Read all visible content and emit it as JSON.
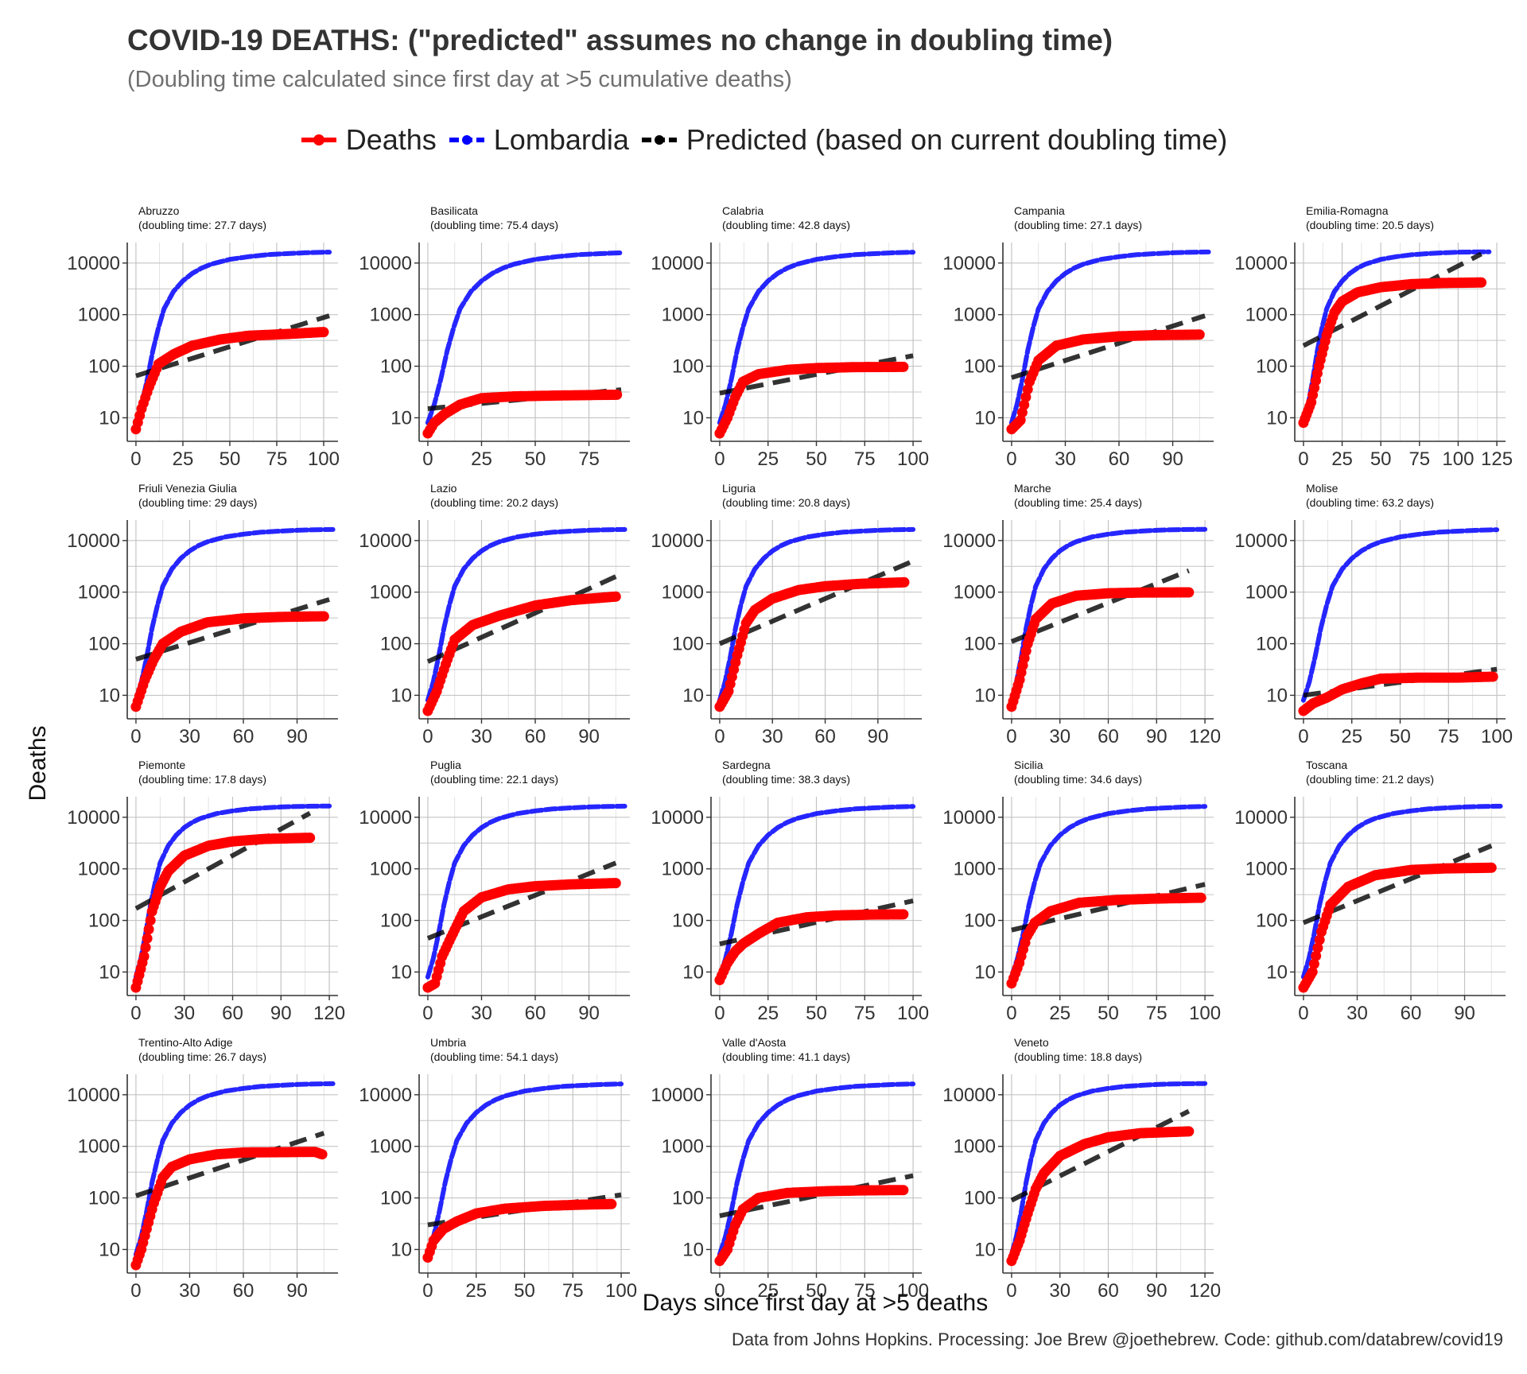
{
  "title": "COVID-19 DEATHS: (\"predicted\" assumes no change in doubling time)",
  "subtitle": "(Doubling time calculated since first day at >5 cumulative deaths)",
  "legend": [
    {
      "label": "Deaths",
      "color": "#ff0000",
      "style": "solid"
    },
    {
      "label": "Lombardia",
      "color": "#0000ff",
      "style": "dashed"
    },
    {
      "label": "Predicted (based on current doubling time)",
      "color": "#000000",
      "style": "dashed"
    }
  ],
  "axes": {
    "xlabel": "Days since first day at >5 deaths",
    "ylabel": "Deaths"
  },
  "caption": "Data from Johns Hopkins. Processing: Joe Brew @joethebrew. Code: github.com/databrew/covid19",
  "chart_data": {
    "type": "line",
    "y_scale": "log10",
    "y_ticks": [
      10,
      100,
      1000,
      10000
    ],
    "ylim": [
      3.5,
      25000
    ],
    "grid": true,
    "legend_position": "top",
    "lombardia_curve": [
      [
        0,
        8
      ],
      [
        3,
        18
      ],
      [
        6,
        55
      ],
      [
        9,
        200
      ],
      [
        12,
        560
      ],
      [
        15,
        1300
      ],
      [
        20,
        2800
      ],
      [
        25,
        4500
      ],
      [
        30,
        6300
      ],
      [
        35,
        8000
      ],
      [
        40,
        9500
      ],
      [
        45,
        10600
      ],
      [
        50,
        11800
      ],
      [
        60,
        13300
      ],
      [
        70,
        14500
      ],
      [
        80,
        15200
      ],
      [
        90,
        15800
      ],
      [
        100,
        16200
      ],
      [
        110,
        16400
      ],
      [
        120,
        16500
      ]
    ],
    "panels": [
      {
        "region": "Abruzzo",
        "doubling_label": "(doubling time: 27.7 days)",
        "x_ticks": [
          0,
          25,
          50,
          75,
          100
        ],
        "xmax": 103,
        "deaths_points": [
          [
            0,
            6
          ],
          [
            3,
            15
          ],
          [
            7,
            40
          ],
          [
            12,
            110
          ],
          [
            20,
            170
          ],
          [
            30,
            250
          ],
          [
            45,
            330
          ],
          [
            60,
            390
          ],
          [
            80,
            420
          ],
          [
            100,
            460
          ]
        ],
        "predicted": [
          [
            0,
            65
          ],
          [
            103,
            950
          ]
        ]
      },
      {
        "region": "Basilicata",
        "doubling_label": "(doubling time: 75.4 days)",
        "x_ticks": [
          0,
          25,
          50,
          75
        ],
        "xmax": 90,
        "deaths_points": [
          [
            0,
            5
          ],
          [
            3,
            8
          ],
          [
            8,
            12
          ],
          [
            15,
            18
          ],
          [
            25,
            24
          ],
          [
            40,
            26
          ],
          [
            60,
            27
          ],
          [
            88,
            28
          ]
        ],
        "predicted": [
          [
            0,
            15
          ],
          [
            90,
            35
          ]
        ]
      },
      {
        "region": "Calabria",
        "doubling_label": "(doubling time: 42.8 days)",
        "x_ticks": [
          0,
          25,
          50,
          75,
          100
        ],
        "xmax": 100,
        "deaths_points": [
          [
            0,
            5
          ],
          [
            4,
            10
          ],
          [
            8,
            25
          ],
          [
            12,
            50
          ],
          [
            20,
            70
          ],
          [
            35,
            85
          ],
          [
            50,
            92
          ],
          [
            70,
            96
          ],
          [
            95,
            97
          ]
        ],
        "predicted": [
          [
            0,
            30
          ],
          [
            100,
            160
          ]
        ]
      },
      {
        "region": "Campania",
        "doubling_label": "(doubling time: 27.1 days)",
        "x_ticks": [
          0,
          30,
          60,
          90
        ],
        "xmax": 108,
        "deaths_points": [
          [
            0,
            6
          ],
          [
            5,
            9
          ],
          [
            10,
            50
          ],
          [
            15,
            130
          ],
          [
            25,
            250
          ],
          [
            40,
            330
          ],
          [
            60,
            380
          ],
          [
            80,
            400
          ],
          [
            105,
            410
          ]
        ],
        "predicted": [
          [
            0,
            60
          ],
          [
            108,
            950
          ]
        ]
      },
      {
        "region": "Emilia-Romagna",
        "doubling_label": "(doubling time: 20.5 days)",
        "x_ticks": [
          0,
          25,
          50,
          75,
          100,
          125
        ],
        "xmax": 125,
        "deaths_points": [
          [
            0,
            8
          ],
          [
            5,
            20
          ],
          [
            10,
            100
          ],
          [
            15,
            400
          ],
          [
            20,
            1100
          ],
          [
            25,
            1800
          ],
          [
            35,
            2700
          ],
          [
            50,
            3400
          ],
          [
            70,
            3900
          ],
          [
            90,
            4100
          ],
          [
            115,
            4200
          ]
        ],
        "predicted": [
          [
            0,
            250
          ],
          [
            115,
            15000
          ]
        ]
      },
      {
        "region": "Friuli Venezia Giulia",
        "doubling_label": "(doubling time: 29 days)",
        "x_ticks": [
          0,
          30,
          60,
          90
        ],
        "xmax": 108,
        "deaths_points": [
          [
            0,
            6
          ],
          [
            5,
            20
          ],
          [
            10,
            50
          ],
          [
            15,
            100
          ],
          [
            25,
            170
          ],
          [
            40,
            260
          ],
          [
            60,
            310
          ],
          [
            80,
            330
          ],
          [
            105,
            340
          ]
        ],
        "predicted": [
          [
            0,
            50
          ],
          [
            108,
            720
          ]
        ]
      },
      {
        "region": "Lazio",
        "doubling_label": "(doubling time: 20.2 days)",
        "x_ticks": [
          0,
          30,
          60,
          90
        ],
        "xmax": 108,
        "deaths_points": [
          [
            0,
            5
          ],
          [
            5,
            12
          ],
          [
            10,
            40
          ],
          [
            15,
            120
          ],
          [
            25,
            230
          ],
          [
            40,
            350
          ],
          [
            60,
            550
          ],
          [
            80,
            700
          ],
          [
            105,
            820
          ]
        ],
        "predicted": [
          [
            0,
            45
          ],
          [
            105,
            2000
          ]
        ]
      },
      {
        "region": "Liguria",
        "doubling_label": "(doubling time: 20.8 days)",
        "x_ticks": [
          0,
          30,
          60,
          90
        ],
        "xmax": 110,
        "deaths_points": [
          [
            0,
            6
          ],
          [
            5,
            12
          ],
          [
            10,
            60
          ],
          [
            15,
            250
          ],
          [
            20,
            450
          ],
          [
            30,
            750
          ],
          [
            45,
            1100
          ],
          [
            60,
            1300
          ],
          [
            80,
            1450
          ],
          [
            105,
            1550
          ]
        ],
        "predicted": [
          [
            0,
            100
          ],
          [
            110,
            4000
          ]
        ]
      },
      {
        "region": "Marche",
        "doubling_label": "(doubling time: 25.4 days)",
        "x_ticks": [
          0,
          30,
          60,
          90,
          120
        ],
        "xmax": 120,
        "deaths_points": [
          [
            0,
            6
          ],
          [
            5,
            20
          ],
          [
            10,
            100
          ],
          [
            15,
            300
          ],
          [
            25,
            600
          ],
          [
            40,
            850
          ],
          [
            60,
            950
          ],
          [
            80,
            980
          ],
          [
            110,
            990
          ]
        ],
        "predicted": [
          [
            0,
            110
          ],
          [
            110,
            2600
          ]
        ]
      },
      {
        "region": "Molise",
        "doubling_label": "(doubling time: 63.2 days)",
        "x_ticks": [
          0,
          25,
          50,
          75,
          100
        ],
        "xmax": 100,
        "deaths_points": [
          [
            0,
            5
          ],
          [
            5,
            7
          ],
          [
            12,
            9
          ],
          [
            20,
            13
          ],
          [
            30,
            17
          ],
          [
            40,
            21
          ],
          [
            60,
            22
          ],
          [
            80,
            22
          ],
          [
            98,
            23
          ]
        ],
        "predicted": [
          [
            0,
            10
          ],
          [
            100,
            32
          ]
        ]
      },
      {
        "region": "Piemonte",
        "doubling_label": "(doubling time: 17.8 days)",
        "x_ticks": [
          0,
          30,
          60,
          90,
          120
        ],
        "xmax": 120,
        "deaths_points": [
          [
            0,
            5
          ],
          [
            5,
            20
          ],
          [
            10,
            150
          ],
          [
            15,
            450
          ],
          [
            20,
            900
          ],
          [
            30,
            1800
          ],
          [
            45,
            2800
          ],
          [
            60,
            3400
          ],
          [
            80,
            3800
          ],
          [
            108,
            4000
          ]
        ],
        "predicted": [
          [
            0,
            170
          ],
          [
            108,
            12000
          ]
        ]
      },
      {
        "region": "Puglia",
        "doubling_label": "(doubling time: 22.1 days)",
        "x_ticks": [
          0,
          30,
          60,
          90
        ],
        "xmax": 108,
        "deaths_points": [
          [
            0,
            5
          ],
          [
            4,
            6
          ],
          [
            8,
            20
          ],
          [
            12,
            40
          ],
          [
            20,
            150
          ],
          [
            30,
            280
          ],
          [
            45,
            400
          ],
          [
            60,
            460
          ],
          [
            80,
            500
          ],
          [
            105,
            530
          ]
        ],
        "predicted": [
          [
            0,
            45
          ],
          [
            105,
            1300
          ]
        ]
      },
      {
        "region": "Sardegna",
        "doubling_label": "(doubling time: 38.3 days)",
        "x_ticks": [
          0,
          25,
          50,
          75,
          100
        ],
        "xmax": 100,
        "deaths_points": [
          [
            0,
            7
          ],
          [
            4,
            15
          ],
          [
            8,
            25
          ],
          [
            12,
            35
          ],
          [
            20,
            55
          ],
          [
            30,
            90
          ],
          [
            45,
            115
          ],
          [
            60,
            125
          ],
          [
            80,
            130
          ],
          [
            95,
            131
          ]
        ],
        "predicted": [
          [
            0,
            35
          ],
          [
            100,
            240
          ]
        ]
      },
      {
        "region": "Sicilia",
        "doubling_label": "(doubling time: 34.6 days)",
        "x_ticks": [
          0,
          25,
          50,
          75,
          100
        ],
        "xmax": 100,
        "deaths_points": [
          [
            0,
            6
          ],
          [
            4,
            15
          ],
          [
            8,
            50
          ],
          [
            12,
            90
          ],
          [
            20,
            150
          ],
          [
            35,
            220
          ],
          [
            55,
            250
          ],
          [
            75,
            265
          ],
          [
            98,
            275
          ]
        ],
        "predicted": [
          [
            0,
            65
          ],
          [
            100,
            500
          ]
        ]
      },
      {
        "region": "Toscana",
        "doubling_label": "(doubling time: 21.2 days)",
        "x_ticks": [
          0,
          30,
          60,
          90
        ],
        "xmax": 108,
        "deaths_points": [
          [
            0,
            5
          ],
          [
            5,
            10
          ],
          [
            10,
            60
          ],
          [
            15,
            200
          ],
          [
            25,
            450
          ],
          [
            40,
            750
          ],
          [
            60,
            950
          ],
          [
            80,
            1020
          ],
          [
            105,
            1050
          ]
        ],
        "predicted": [
          [
            0,
            90
          ],
          [
            105,
            2800
          ]
        ]
      },
      {
        "region": "Trentino-Alto Adige",
        "doubling_label": "(doubling time: 26.7 days)",
        "x_ticks": [
          0,
          30,
          60,
          90
        ],
        "xmax": 108,
        "deaths_points": [
          [
            0,
            5
          ],
          [
            3,
            10
          ],
          [
            6,
            25
          ],
          [
            10,
            80
          ],
          [
            15,
            250
          ],
          [
            20,
            400
          ],
          [
            30,
            560
          ],
          [
            45,
            700
          ],
          [
            60,
            760
          ],
          [
            80,
            770
          ],
          [
            100,
            780
          ],
          [
            104,
            700
          ]
        ],
        "predicted": [
          [
            0,
            110
          ],
          [
            105,
            1800
          ]
        ]
      },
      {
        "region": "Umbria",
        "doubling_label": "(doubling time: 54.1 days)",
        "x_ticks": [
          0,
          25,
          50,
          75,
          100
        ],
        "xmax": 100,
        "deaths_points": [
          [
            0,
            7
          ],
          [
            3,
            15
          ],
          [
            8,
            25
          ],
          [
            15,
            35
          ],
          [
            25,
            50
          ],
          [
            40,
            62
          ],
          [
            60,
            70
          ],
          [
            80,
            74
          ],
          [
            95,
            76
          ]
        ],
        "predicted": [
          [
            0,
            30
          ],
          [
            100,
            115
          ]
        ]
      },
      {
        "region": "Valle d'Aosta",
        "doubling_label": "(doubling time: 41.1 days)",
        "x_ticks": [
          0,
          25,
          50,
          75,
          100
        ],
        "xmax": 100,
        "deaths_points": [
          [
            0,
            6
          ],
          [
            4,
            10
          ],
          [
            8,
            30
          ],
          [
            12,
            60
          ],
          [
            20,
            100
          ],
          [
            35,
            125
          ],
          [
            55,
            135
          ],
          [
            75,
            140
          ],
          [
            95,
            142
          ]
        ],
        "predicted": [
          [
            0,
            45
          ],
          [
            100,
            270
          ]
        ]
      },
      {
        "region": "Veneto",
        "doubling_label": "(doubling time: 18.8 days)",
        "x_ticks": [
          0,
          30,
          60,
          90,
          120
        ],
        "xmax": 120,
        "deaths_points": [
          [
            0,
            6
          ],
          [
            5,
            15
          ],
          [
            10,
            50
          ],
          [
            15,
            150
          ],
          [
            20,
            300
          ],
          [
            30,
            650
          ],
          [
            45,
            1100
          ],
          [
            60,
            1500
          ],
          [
            80,
            1800
          ],
          [
            110,
            1950
          ]
        ],
        "predicted": [
          [
            0,
            90
          ],
          [
            110,
            4800
          ]
        ]
      }
    ]
  }
}
